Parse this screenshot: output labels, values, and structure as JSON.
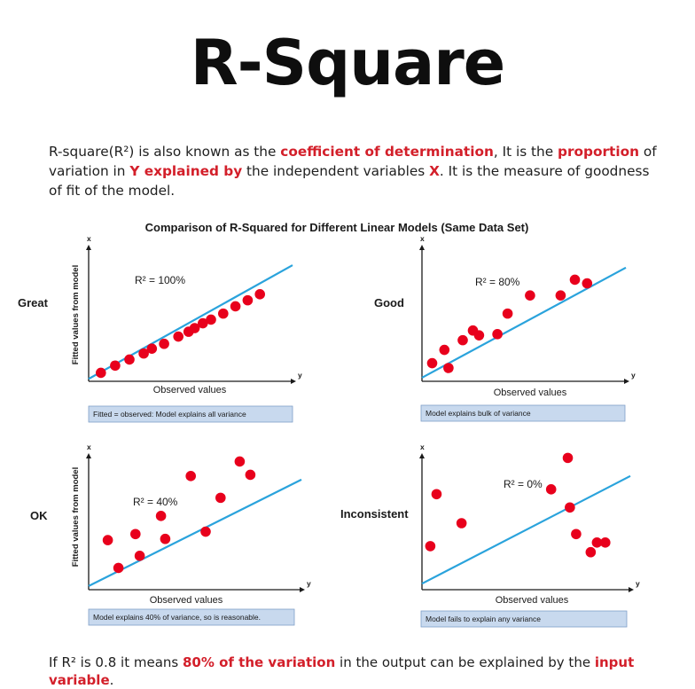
{
  "title": "R-Square",
  "intro": {
    "t1": "R-square(R²) is also known as the ",
    "h1": "coefficient of determination",
    "t2": ", It is the ",
    "h2": "proportion",
    "t3": " of variation in ",
    "h3": "Y explained by",
    "t4": " the independent variables ",
    "h4": "X",
    "t5": ". It is the measure of goodness of fit of the model."
  },
  "outro": {
    "t1": "If R² is 0.8 it means ",
    "h1": "80% of the variation",
    "t2": " in the output can be explained by the ",
    "h2": "input variable",
    "t3": "."
  },
  "colors": {
    "highlight": "#d31f2a",
    "point": "#e8001c",
    "fit_line": "#2aa3dc",
    "caption_bg": "#c8d9ee"
  },
  "chart_data": {
    "title": "Comparison of R-Squared for Different Linear Models (Same Data Set)",
    "panels": [
      {
        "type": "scatter",
        "quality": "Great",
        "r2_label": "R² = 100%",
        "xlabel": "Observed values",
        "ylabel": "Fitted values from model",
        "x_axis_letter": "y",
        "y_axis_letter": "x",
        "caption": "Fitted = observed: Model explains all variance",
        "fit_line": {
          "x": [
            0,
            10
          ],
          "y": [
            0.2,
            9.6
          ]
        },
        "points": [
          [
            0.6,
            0.7
          ],
          [
            1.3,
            1.3
          ],
          [
            2.0,
            1.8
          ],
          [
            2.7,
            2.3
          ],
          [
            3.1,
            2.7
          ],
          [
            3.7,
            3.1
          ],
          [
            4.4,
            3.7
          ],
          [
            4.9,
            4.1
          ],
          [
            5.2,
            4.4
          ],
          [
            5.6,
            4.8
          ],
          [
            6.0,
            5.1
          ],
          [
            6.6,
            5.6
          ],
          [
            7.2,
            6.2
          ],
          [
            7.8,
            6.7
          ],
          [
            8.4,
            7.2
          ]
        ]
      },
      {
        "type": "scatter",
        "quality": "Good",
        "r2_label": "R²  = 80%",
        "xlabel": "Observed values",
        "ylabel": "",
        "x_axis_letter": "y",
        "y_axis_letter": "x",
        "caption": "Model explains bulk of variance",
        "fit_line": {
          "x": [
            0,
            10
          ],
          "y": [
            0.3,
            9.4
          ]
        },
        "points": [
          [
            0.5,
            1.5
          ],
          [
            1.1,
            2.6
          ],
          [
            1.3,
            1.1
          ],
          [
            2.0,
            3.4
          ],
          [
            2.5,
            4.2
          ],
          [
            2.8,
            3.8
          ],
          [
            3.7,
            3.9
          ],
          [
            4.2,
            5.6
          ],
          [
            5.3,
            7.1
          ],
          [
            6.8,
            7.1
          ],
          [
            7.5,
            8.4
          ],
          [
            8.1,
            8.1
          ]
        ]
      },
      {
        "type": "scatter",
        "quality": "OK",
        "r2_label": "R²  = 40%",
        "xlabel": "Observed values",
        "ylabel": "Fitted values from model",
        "x_axis_letter": "y",
        "y_axis_letter": "x",
        "caption": "Model explains 40% of variance, so is reasonable.",
        "fit_line": {
          "x": [
            0,
            10
          ],
          "y": [
            0.3,
            9.1
          ]
        },
        "points": [
          [
            0.9,
            4.1
          ],
          [
            1.4,
            1.8
          ],
          [
            2.2,
            4.6
          ],
          [
            2.4,
            2.8
          ],
          [
            3.4,
            6.1
          ],
          [
            3.6,
            4.2
          ],
          [
            4.8,
            9.4
          ],
          [
            5.5,
            4.8
          ],
          [
            6.2,
            7.6
          ],
          [
            7.1,
            10.6
          ],
          [
            7.6,
            9.5
          ]
        ]
      },
      {
        "type": "scatter",
        "quality": "Inconsistent",
        "r2_label": "R²  = 0%",
        "xlabel": "Observed values",
        "ylabel": "",
        "x_axis_letter": "y",
        "y_axis_letter": "x",
        "caption": "Model fails to explain any variance",
        "fit_line": {
          "x": [
            0,
            10
          ],
          "y": [
            0.5,
            9.4
          ]
        },
        "points": [
          [
            0.4,
            3.6
          ],
          [
            0.7,
            7.9
          ],
          [
            1.9,
            5.5
          ],
          [
            6.2,
            8.3
          ],
          [
            7.0,
            10.9
          ],
          [
            7.1,
            6.8
          ],
          [
            7.4,
            4.6
          ],
          [
            8.1,
            3.1
          ],
          [
            8.4,
            3.9
          ],
          [
            8.8,
            3.9
          ]
        ]
      }
    ]
  }
}
